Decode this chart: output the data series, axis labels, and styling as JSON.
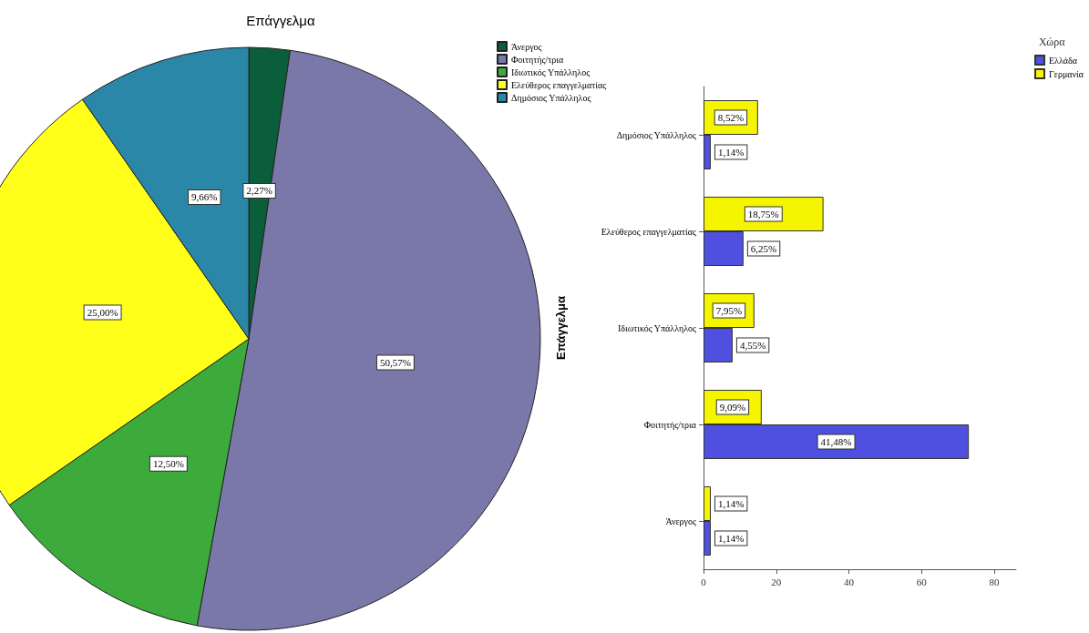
{
  "chart_data": [
    {
      "type": "pie",
      "title": "Επάγγελμα",
      "categories": [
        "Άνεργος",
        "Φοιτητής/τρια",
        "Ιδιωτικός Υπάλληλος",
        "Ελεύθερος επαγγελματίας",
        "Δημόσιος Υπάλληλος"
      ],
      "values": [
        2.27,
        50.57,
        12.5,
        25.0,
        9.66
      ],
      "colors": [
        "#0b5e3a",
        "#7a78a8",
        "#3cab3c",
        "#ffff1a",
        "#2a87a8"
      ],
      "value_labels": [
        "2,27%",
        "50,57%",
        "12,50%",
        "25,00%",
        "9,66%"
      ],
      "legend": "top right"
    },
    {
      "type": "bar",
      "orientation": "horizontal",
      "ylabel": "Επάγγελμα",
      "legend_title": "Χώρα",
      "categories": [
        "Δημόσιος Υπάλληλος",
        "Ελεύθερος επαγγελματίας",
        "Ιδιωτικός Υπάλληλος",
        "Φοιτητής/τρια",
        "Άνεργος"
      ],
      "series": [
        {
          "name": "Ελλάδα",
          "color": "#5050e0",
          "values": [
            2,
            11,
            8,
            73,
            2
          ]
        },
        {
          "name": "Γερμανία",
          "color": "#f5f500",
          "values": [
            15,
            33,
            14,
            16,
            2
          ]
        }
      ],
      "annotations": [
        "1,14%",
        "6,25%",
        "4,55%",
        "41,48%",
        "1,14%",
        "8,52%",
        "18,75%",
        "7,95%",
        "9,09%",
        "1,14%"
      ],
      "xlim": [
        0,
        86
      ],
      "xticks": [
        0,
        20,
        40,
        60,
        80
      ],
      "legend": "top right"
    }
  ]
}
